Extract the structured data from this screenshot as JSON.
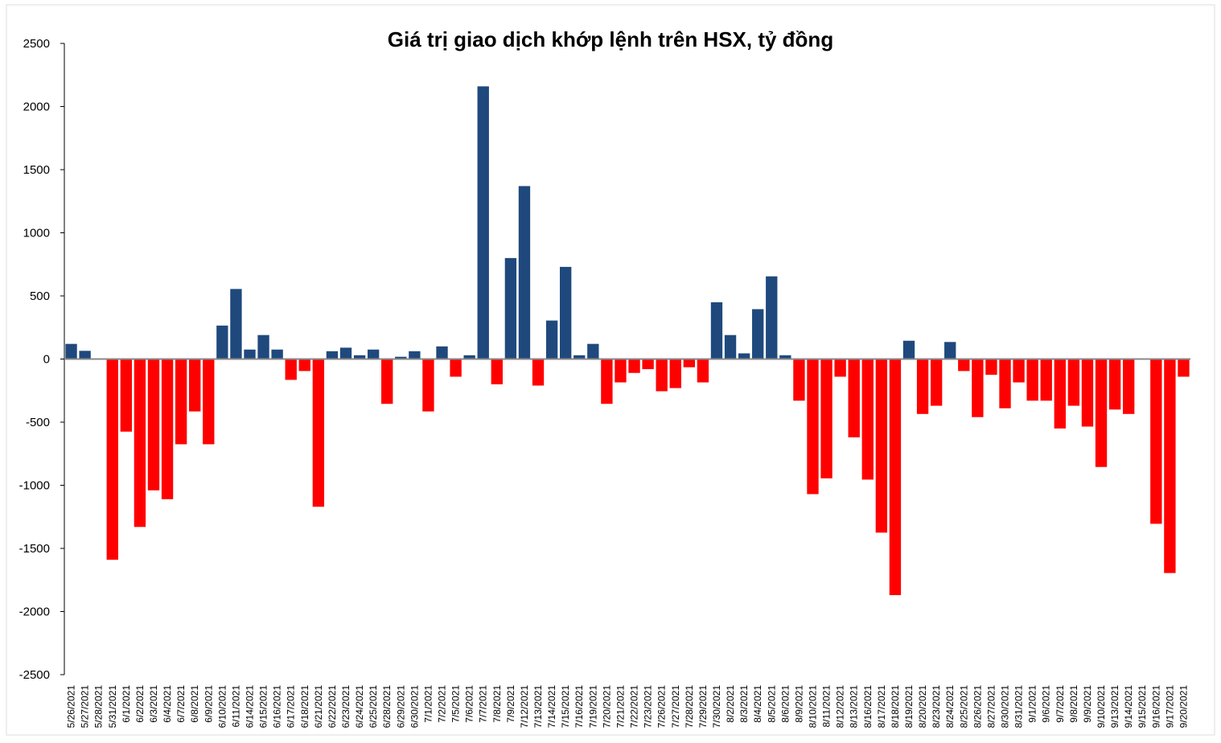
{
  "chart_data": {
    "type": "bar",
    "title": "Giá  trị giao  dịch  khớp  lệnh  trên HSX,  tỷ đồng",
    "categories": [
      "5/26/2021",
      "5/27/2021",
      "5/28/2021",
      "5/31/2021",
      "6/1/2021",
      "6/2/2021",
      "6/3/2021",
      "6/4/2021",
      "6/7/2021",
      "6/8/2021",
      "6/9/2021",
      "6/10/2021",
      "6/11/2021",
      "6/14/2021",
      "6/15/2021",
      "6/16/2021",
      "6/17/2021",
      "6/18/2021",
      "6/21/2021",
      "6/22/2021",
      "6/23/2021",
      "6/24/2021",
      "6/25/2021",
      "6/28/2021",
      "6/29/2021",
      "6/30/2021",
      "7/1/2021",
      "7/2/2021",
      "7/5/2021",
      "7/6/2021",
      "7/7/2021",
      "7/8/2021",
      "7/9/2021",
      "7/12/2021",
      "7/13/2021",
      "7/14/2021",
      "7/15/2021",
      "7/16/2021",
      "7/19/2021",
      "7/20/2021",
      "7/21/2021",
      "7/22/2021",
      "7/23/2021",
      "7/26/2021",
      "7/27/2021",
      "7/28/2021",
      "7/29/2021",
      "7/30/2021",
      "8/2/2021",
      "8/3/2021",
      "8/4/2021",
      "8/5/2021",
      "8/6/2021",
      "8/9/2021",
      "8/10/2021",
      "8/11/2021",
      "8/12/2021",
      "8/13/2021",
      "8/16/2021",
      "8/17/2021",
      "8/18/2021",
      "8/19/2021",
      "8/20/2021",
      "8/23/2021",
      "8/24/2021",
      "8/25/2021",
      "8/26/2021",
      "8/27/2021",
      "8/30/2021",
      "8/31/2021",
      "9/1/2021",
      "9/6/2021",
      "9/7/2021",
      "9/8/2021",
      "9/9/2021",
      "9/10/2021",
      "9/13/2021",
      "9/14/2021",
      "9/15/2021",
      "9/16/2021",
      "9/17/2021",
      "9/20/2021"
    ],
    "values": [
      120,
      65,
      0,
      -1590,
      -575,
      -1330,
      -1040,
      -1110,
      -675,
      -415,
      -675,
      265,
      555,
      75,
      190,
      75,
      -165,
      -95,
      -1170,
      62,
      90,
      30,
      75,
      -355,
      18,
      62,
      -415,
      100,
      -140,
      30,
      2160,
      -200,
      800,
      1370,
      -210,
      305,
      730,
      30,
      120,
      -355,
      -185,
      -110,
      -80,
      -255,
      -230,
      -65,
      -185,
      450,
      190,
      45,
      395,
      655,
      30,
      -330,
      -1070,
      -945,
      -140,
      -620,
      -955,
      -1375,
      -1870,
      145,
      -435,
      -370,
      135,
      -95,
      -460,
      -125,
      -390,
      -185,
      -330,
      -330,
      -550,
      -370,
      -535,
      -855,
      -400,
      -435,
      0,
      -1305,
      -1695,
      -140
    ],
    "colors": {
      "positive": "#1f497d",
      "negative": "#ff0000"
    },
    "ylim": [
      -2500,
      2500
    ],
    "yticks": [
      -2500,
      -2000,
      -1500,
      -1000,
      -500,
      0,
      500,
      1000,
      1500,
      2000,
      2500
    ],
    "grid": false
  }
}
